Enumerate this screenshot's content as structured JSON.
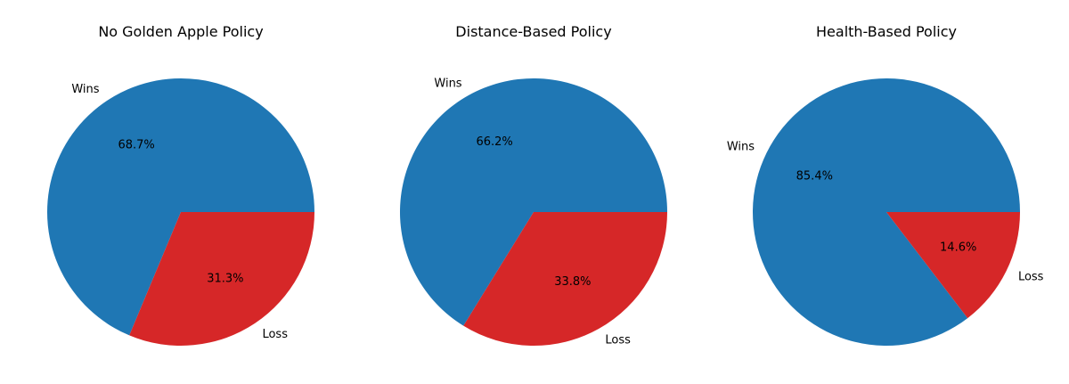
{
  "chart_data": [
    {
      "type": "pie",
      "title": "No Golden Apple Policy",
      "labels": [
        "Wins",
        "Loss"
      ],
      "values": [
        68.7,
        31.3
      ],
      "percent_labels": [
        "68.7%",
        "31.3%"
      ],
      "colors": [
        "#1f77b4",
        "#d62728"
      ]
    },
    {
      "type": "pie",
      "title": "Distance-Based Policy",
      "labels": [
        "Wins",
        "Loss"
      ],
      "values": [
        66.2,
        33.8
      ],
      "percent_labels": [
        "66.2%",
        "33.8%"
      ],
      "colors": [
        "#1f77b4",
        "#d62728"
      ]
    },
    {
      "type": "pie",
      "title": "Health-Based Policy",
      "labels": [
        "Wins",
        "Loss"
      ],
      "values": [
        85.4,
        14.6
      ],
      "percent_labels": [
        "85.4%",
        "14.6%"
      ],
      "colors": [
        "#1f77b4",
        "#d62728"
      ]
    }
  ]
}
